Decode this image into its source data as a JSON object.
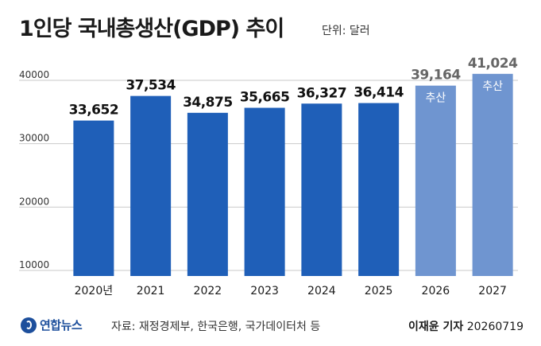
{
  "header": {
    "title": "1인당 국내총생산(GDP) 추이",
    "unit": "단위: 달러"
  },
  "footer": {
    "logo": "연합뉴스",
    "source": "자료: 재정경제부, 한국은행, 국가데이터처 등",
    "reporter": "이재윤 기자",
    "date": "20260719"
  },
  "colors": {
    "actual": "#1f5fb8",
    "estimate": "#6f95d0",
    "grid": "#c9c9c9",
    "axis_text": "#333333"
  },
  "chart_data": {
    "type": "bar",
    "categories": [
      "2020년",
      "2021",
      "2022",
      "2023",
      "2024",
      "2025",
      "2026",
      "2027"
    ],
    "values": [
      33652,
      37534,
      34875,
      35665,
      36327,
      36414,
      39164,
      41024
    ],
    "value_labels": [
      "33,652",
      "37,534",
      "34,875",
      "35,665",
      "36,327",
      "36,414",
      "39,164",
      "41,024"
    ],
    "estimate_label": "추산",
    "estimated": [
      false,
      false,
      false,
      false,
      false,
      false,
      true,
      true
    ],
    "yticks": [
      10000,
      20000,
      30000,
      40000
    ],
    "ytick_labels": [
      "10000",
      "20000",
      "30000",
      "40000"
    ],
    "ylim": [
      10000,
      40000
    ],
    "grid": true
  }
}
